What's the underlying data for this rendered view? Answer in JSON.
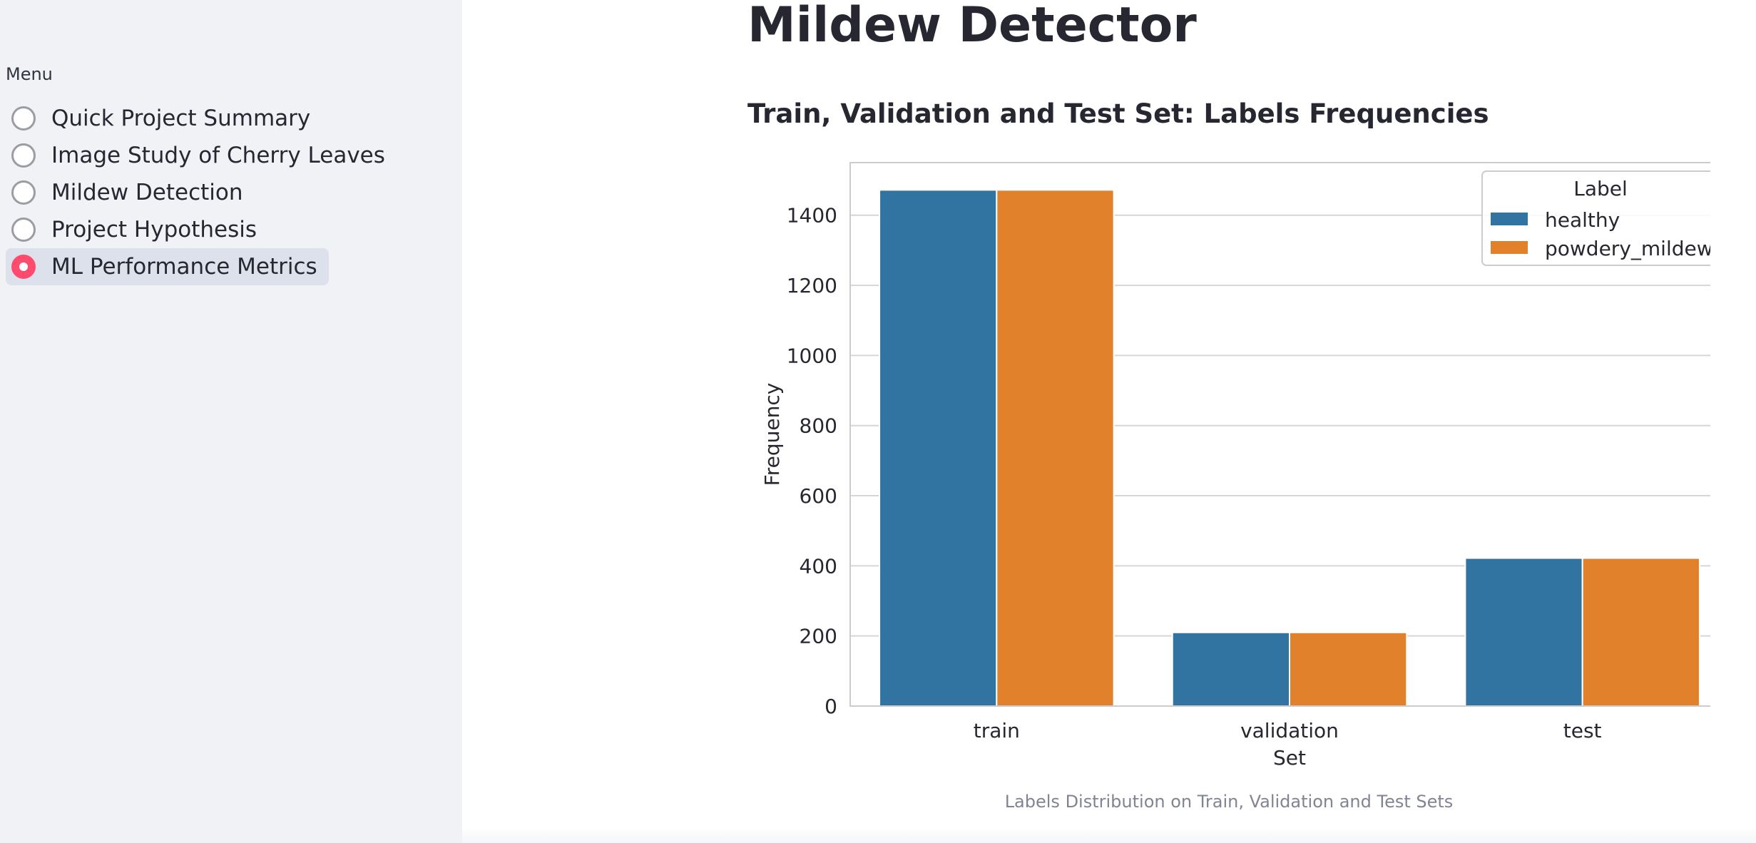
{
  "sidebar": {
    "menu_label": "Menu",
    "items": [
      {
        "label": "Quick Project Summary",
        "selected": false
      },
      {
        "label": "Image Study of Cherry Leaves",
        "selected": false
      },
      {
        "label": "Mildew Detection",
        "selected": false
      },
      {
        "label": "Project Hypothesis",
        "selected": false
      },
      {
        "label": "ML Performance Metrics",
        "selected": true
      }
    ],
    "accent_color": "#ff4b6e"
  },
  "main": {
    "title": "Mildew Detector",
    "section_title": "Train, Validation and Test Set: Labels Frequencies",
    "caption": "Labels Distribution on Train, Validation and Test Sets"
  },
  "chart_data": {
    "type": "bar",
    "categories": [
      "train",
      "validation",
      "test"
    ],
    "series": [
      {
        "name": "healthy",
        "values": [
          1472,
          210,
          422
        ],
        "color": "#3274a1"
      },
      {
        "name": "powdery_mildew",
        "values": [
          1472,
          210,
          422
        ],
        "color": "#e1812c"
      }
    ],
    "title": "",
    "xlabel": "Set",
    "ylabel": "Frequency",
    "ylim": [
      0,
      1550
    ],
    "yticks": [
      0,
      200,
      400,
      600,
      800,
      1000,
      1200,
      1400
    ],
    "legend_title": "Label",
    "legend_position": "top-right",
    "grid": true
  }
}
